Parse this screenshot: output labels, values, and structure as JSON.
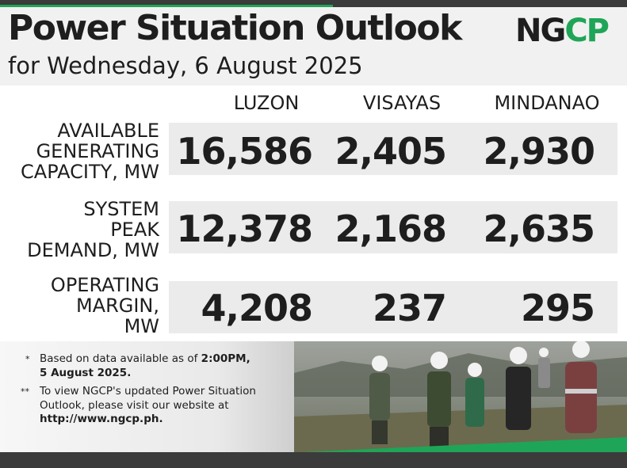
{
  "header": {
    "title": "Power Situation Outlook",
    "subtitle": "for Wednesday, 6 August 2025",
    "logo_text": "NGCP"
  },
  "columns": [
    "LUZON",
    "VISAYAS",
    "MINDANAO"
  ],
  "rows": [
    {
      "label": [
        "AVAILABLE",
        "GENERATING",
        "CAPACITY, MW"
      ],
      "values": [
        "16,586",
        "2,405",
        "2,930"
      ]
    },
    {
      "label": [
        "SYSTEM",
        "PEAK",
        "DEMAND, MW"
      ],
      "values": [
        "12,378",
        "2,168",
        "2,635"
      ]
    },
    {
      "label": [
        "OPERATING",
        "MARGIN,",
        "MW"
      ],
      "values": [
        "4,208",
        "237",
        "295"
      ]
    }
  ],
  "notes": {
    "n1_marker": "*",
    "n1_text_a": "Based on data available as of ",
    "n1_time": "2:00PM,",
    "n1_date": "5 August 2025.",
    "n2_marker": "**",
    "n2_text": "To view NGCP's updated Power Situation Outlook, please visit our website at",
    "n2_url": "http://www.ngcp.ph."
  },
  "colors": {
    "brand_green": "#1fa557",
    "dark": "#1e1e1e",
    "row_bg": "#ebebeb"
  }
}
